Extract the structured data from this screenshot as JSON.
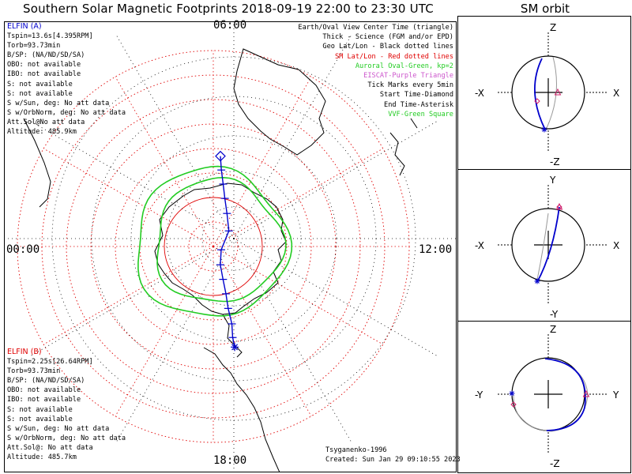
{
  "title": "Southern Solar Magnetic Footprints 2018-09-19 22:00 to 23:30 UTC",
  "orbit_title": "SM orbit",
  "hour_labels": {
    "top": "06:00",
    "left": "00:00",
    "right": "12:00",
    "bottom": "18:00"
  },
  "legend": [
    {
      "text": "Earth/Oval View Center Time (triangle)",
      "color": "#000000"
    },
    {
      "text": "Thick - Science (FGM and/or EPD)",
      "color": "#000000"
    },
    {
      "text": "Geo Lat/Lon - Black dotted lines",
      "color": "#000000"
    },
    {
      "text": "SM Lat/Lon - Red dotted lines",
      "color": "#e00000"
    },
    {
      "text": "Auroral Oval-Green, kp=2",
      "color": "#22cc22"
    },
    {
      "text": "EISCAT-Purple Triangle",
      "color": "#cc55cc"
    },
    {
      "text": "Tick Marks every 5min",
      "color": "#000000"
    },
    {
      "text": "Start Time-Diamond",
      "color": "#000000"
    },
    {
      "text": "End Time-Asterisk",
      "color": "#000000"
    },
    {
      "text": "VVF-Green Square",
      "color": "#22cc22"
    }
  ],
  "probe_a": {
    "name": "ELFIN (A)",
    "color": "#0000cc",
    "lines": [
      "Tspin=13.6s[4.395RPM]",
      "Torb=93.73min",
      "B/SP: (NA/ND/SD/SA)",
      "OBO: not available",
      "IBO: not available",
      "S: not available",
      "S: not available",
      "S w/Sun, deg: No att data",
      "S w/OrbNorm, deg: No att data",
      "Att.Sol@No att data",
      "Altitude: 485.9km"
    ]
  },
  "probe_b": {
    "name": "ELFIN (B)",
    "color": "#e00000",
    "lines": [
      "Tspin=2.25s[26.64RPM]",
      "Torb=93.73min",
      "B/SP: (NA/ND/SD/SA)",
      "OBO: not available",
      "IBO: not available",
      "S: not available",
      "S: not available",
      "S w/Sun, deg: No att data",
      "S w/OrbNorm, deg: No att data",
      "Att.Sol@: No att data",
      "Altitude: 485.7km"
    ]
  },
  "credit_model": "Tsyganenko-1996",
  "credit_created": "Created: Sun Jan 29 09:10:55 2023",
  "orbit_panels": [
    {
      "top": "Z",
      "bottom": "-Z",
      "left": "-X",
      "right": "X"
    },
    {
      "top": "Y",
      "bottom": "-Y",
      "left": "-X",
      "right": "X"
    },
    {
      "top": "Z",
      "bottom": "-Z",
      "left": "-Y",
      "right": "Y"
    }
  ],
  "colors": {
    "track": "#0000cc",
    "sm_grid": "#e00000",
    "oval": "#22cc22",
    "eiscat": "#cc55cc",
    "geo_grid": "#000000"
  },
  "chart_data": {
    "type": "polar-map",
    "projection": "southern magnetic hemisphere polar view",
    "sm_latitude_rings_deg": [
      -90,
      -80,
      -70,
      -60,
      -50,
      -40,
      -30,
      -20,
      -10
    ],
    "track_a": {
      "start": {
        "mlat": -53.0,
        "mlt": 6.3
      },
      "end": {
        "mlat": -48.0,
        "mlt": 17.2
      },
      "ticks_every_min": 5,
      "points_mlat_mlt": [
        [
          -53.0,
          6.3
        ],
        [
          -58.6,
          6.4
        ],
        [
          -64.2,
          6.6
        ],
        [
          -69.8,
          6.9
        ],
        [
          -75.4,
          7.5
        ],
        [
          -81.0,
          9.0
        ],
        [
          -86.5,
          13.5
        ],
        [
          -82.0,
          16.6
        ],
        [
          -76.0,
          16.9
        ],
        [
          -70.0,
          17.0
        ],
        [
          -64.0,
          17.1
        ],
        [
          -57.5,
          17.1
        ],
        [
          -52.0,
          17.2
        ],
        [
          -48.0,
          17.2
        ]
      ]
    },
    "auroral_oval_kp": 2
  }
}
